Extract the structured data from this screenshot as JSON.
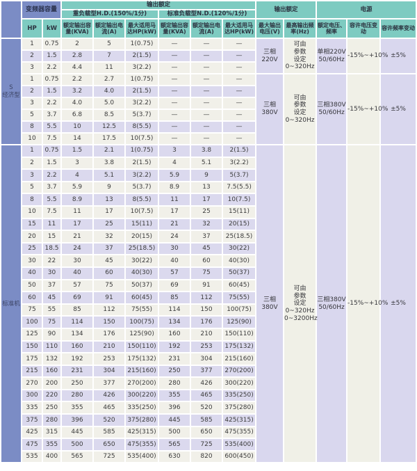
{
  "colors": {
    "header_teal": "#7ecbc1",
    "header_blue": "#7b8cc5",
    "row_white": "#f1f0e9",
    "row_lavender": "#dbd9ee",
    "group_lavender": "#d9d7ee",
    "group_white": "#f0f0e7"
  },
  "header": {
    "inverter_capacity": "变频器容量",
    "output_rating": "输出额定",
    "hd_group": "重负载型H.D.(150%/1分)",
    "nd_group": "标准负载型N.D.(120%/1分)",
    "hp": "HP",
    "kw": "kW",
    "rated_output_capacity": "额定输出容量(KVA)",
    "rated_output_current": "额定输出电流(A)",
    "max_motor": "最大适用马达HP(kW)",
    "output_rating_right": "输出额定",
    "power_supply": "电源",
    "max_output_voltage": "最大输出电压(V)",
    "max_output_freq": "最高输出频率(Hz)",
    "rated_voltage_freq": "额定电压、频率",
    "allow_voltage_var": "容许电压变动",
    "allow_freq_var": "容许频率变动"
  },
  "column_names": [
    "hp-cell",
    "kw-cell",
    "hd-kva-cell",
    "hd-current-cell",
    "hd-motor-cell",
    "nd-kva-cell",
    "nd-current-cell",
    "nd-motor-cell"
  ],
  "sections": [
    {
      "label_lines": [
        "S",
        "经济型"
      ],
      "stripes": [
        "w",
        "l",
        "w",
        "w",
        "l",
        "w",
        "w",
        "l",
        "w"
      ],
      "rows": [
        [
          "1",
          "0.75",
          "2",
          "5",
          "1(0.75)",
          "—",
          "—",
          "—"
        ],
        [
          "2",
          "1.5",
          "2.8",
          "7",
          "2(1.5)",
          "—",
          "—",
          "—"
        ],
        [
          "3",
          "2.2",
          "4.4",
          "11",
          "3(2.2)",
          "—",
          "—",
          "—"
        ],
        [
          "1",
          "0.75",
          "2.2",
          "2.7",
          "1(0.75)",
          "—",
          "—",
          "—"
        ],
        [
          "2",
          "1.5",
          "3.2",
          "4.0",
          "2(1.5)",
          "—",
          "—",
          "—"
        ],
        [
          "3",
          "2.2",
          "4.0",
          "5.0",
          "3(2.2)",
          "—",
          "—",
          "—"
        ],
        [
          "5",
          "3.7",
          "6.8",
          "8.5",
          "5(3.7)",
          "—",
          "—",
          "—"
        ],
        [
          "8",
          "5.5",
          "10",
          "12.5",
          "8(5.5)",
          "—",
          "—",
          "—"
        ],
        [
          "10",
          "7.5",
          "14",
          "17.5",
          "10(7.5)",
          "—",
          "—",
          "—"
        ]
      ],
      "groups": [
        {
          "start": 0,
          "span": 3,
          "voltage": [
            "三相",
            "220V"
          ],
          "freq_set": [
            "可由",
            "参数",
            "设定",
            "0~320Hz"
          ],
          "supply": [
            "单相220V",
            "50/60Hz"
          ],
          "volt_var": "-15%~+10%",
          "freq_var": "±5%"
        },
        {
          "start": 3,
          "span": 6,
          "voltage": [
            "三相",
            "380V"
          ],
          "freq_set": [
            "可由",
            "参数",
            "设定",
            "0~320Hz"
          ],
          "supply": [
            "三相380V",
            "50/60Hz"
          ],
          "volt_var": "-15%~+10%",
          "freq_var": "±5%"
        }
      ]
    },
    {
      "label_lines": [
        "标准机"
      ],
      "stripes": [
        "l",
        "w",
        "l",
        "w",
        "l",
        "w",
        "l",
        "w",
        "l",
        "w",
        "l",
        "w",
        "l",
        "w",
        "l",
        "w",
        "l",
        "w",
        "l",
        "w",
        "l",
        "w",
        "l",
        "w",
        "l",
        "w"
      ],
      "rows": [
        [
          "1",
          "0.75",
          "1.5",
          "2.1",
          "1(0.75)",
          "3",
          "3.8",
          "2(1.5)"
        ],
        [
          "2",
          "1.5",
          "3",
          "3.8",
          "2(1.5)",
          "4",
          "5.1",
          "3(2.2)"
        ],
        [
          "3",
          "2.2",
          "4",
          "5.1",
          "3(2.2)",
          "5.9",
          "9",
          "5(3.7)"
        ],
        [
          "5",
          "3.7",
          "5.9",
          "9",
          "5(3.7)",
          "8.9",
          "13",
          "7.5(5.5)"
        ],
        [
          "8",
          "5.5",
          "8.9",
          "13",
          "8(5.5)",
          "11",
          "17",
          "10(7.5)"
        ],
        [
          "10",
          "7.5",
          "11",
          "17",
          "10(7.5)",
          "17",
          "25",
          "15(11)"
        ],
        [
          "15",
          "11",
          "17",
          "25",
          "15(11)",
          "21",
          "32",
          "20(15)"
        ],
        [
          "20",
          "15",
          "21",
          "32",
          "20(15)",
          "24",
          "37",
          "25(18.5)"
        ],
        [
          "25",
          "18.5",
          "24",
          "37",
          "25(18.5)",
          "30",
          "45",
          "30(22)"
        ],
        [
          "30",
          "22",
          "30",
          "45",
          "30(22)",
          "40",
          "60",
          "40(30)"
        ],
        [
          "40",
          "30",
          "40",
          "60",
          "40(30)",
          "57",
          "75",
          "50(37)"
        ],
        [
          "50",
          "37",
          "57",
          "75",
          "50(37)",
          "69",
          "91",
          "60(45)"
        ],
        [
          "60",
          "45",
          "69",
          "91",
          "60(45)",
          "85",
          "112",
          "75(55)"
        ],
        [
          "75",
          "55",
          "85",
          "112",
          "75(55)",
          "114",
          "150",
          "100(75)"
        ],
        [
          "100",
          "75",
          "114",
          "150",
          "100(75)",
          "134",
          "176",
          "125(90)"
        ],
        [
          "125",
          "90",
          "134",
          "176",
          "125(90)",
          "160",
          "210",
          "150(110)"
        ],
        [
          "150",
          "110",
          "160",
          "210",
          "150(110)",
          "192",
          "253",
          "175(132)"
        ],
        [
          "175",
          "132",
          "192",
          "253",
          "175(132)",
          "231",
          "304",
          "215(160)"
        ],
        [
          "215",
          "160",
          "231",
          "304",
          "215(160)",
          "250",
          "377",
          "270(200)"
        ],
        [
          "270",
          "200",
          "250",
          "377",
          "270(200)",
          "280",
          "426",
          "300(220)"
        ],
        [
          "300",
          "220",
          "280",
          "426",
          "300(220)",
          "355",
          "465",
          "335(250)"
        ],
        [
          "335",
          "250",
          "355",
          "465",
          "335(250)",
          "396",
          "520",
          "375(280)"
        ],
        [
          "375",
          "280",
          "396",
          "520",
          "375(280)",
          "445",
          "585",
          "425(315)"
        ],
        [
          "425",
          "315",
          "445",
          "585",
          "425(315)",
          "500",
          "650",
          "475(355)"
        ],
        [
          "475",
          "355",
          "500",
          "650",
          "475(355)",
          "565",
          "725",
          "535(400)"
        ],
        [
          "535",
          "400",
          "565",
          "725",
          "535(400)",
          "630",
          "820",
          "600(450)"
        ]
      ],
      "groups": [
        {
          "start": 0,
          "span": 26,
          "voltage": [
            "三相",
            "380V"
          ],
          "freq_set": [
            "可由",
            "参数",
            "设定",
            "0~320Hz",
            "0~3200Hz"
          ],
          "supply": [
            "三相380V",
            "50/60Hz"
          ],
          "volt_var": "-15%~+10%",
          "freq_var": "±5%"
        }
      ]
    }
  ]
}
